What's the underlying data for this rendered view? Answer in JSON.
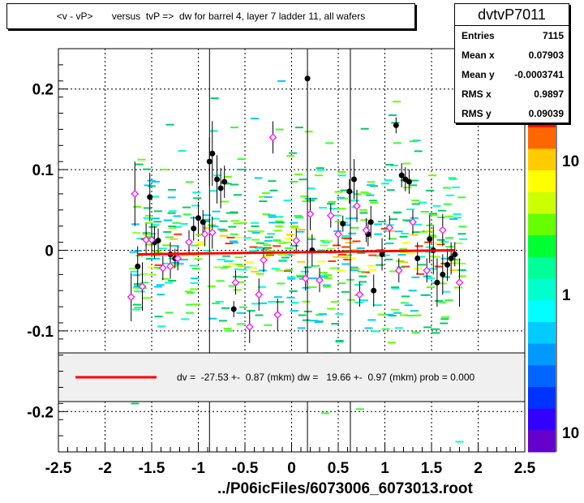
{
  "title": "<v - vP>       versus  tvP =>  dw for barrel 4, layer 7 ladder 11, all wafers",
  "stats": {
    "name": "dvtvP7011",
    "rows": [
      {
        "label": "Entries",
        "value": "7115"
      },
      {
        "label": "Mean x",
        "value": "0.07903"
      },
      {
        "label": "Mean y",
        "value": "-0.0003741"
      },
      {
        "label": "RMS x",
        "value": "0.9897"
      },
      {
        "label": "RMS y",
        "value": "0.09039"
      }
    ]
  },
  "footer": "../P06icFiles/6073006_6073013.root",
  "fit_legend": "dv =  -27.53 +-  0.87 (mkm) dw =   19.66 +-  0.97 (mkm) prob = 0.000",
  "colors": {
    "fit": "#ff0000",
    "profile": "#000000",
    "profile2": "#ff00ff"
  },
  "chart_data": {
    "type": "scatter",
    "xlim": [
      -2.5,
      2.5
    ],
    "ylim": [
      -0.25,
      0.25
    ],
    "xticks": [
      "-2.5",
      "-2",
      "-1.5",
      "-1",
      "-0.5",
      "0",
      "0.5",
      "1",
      "1.5",
      "2",
      "2.5"
    ],
    "yticks": [
      "0.2",
      "0.1",
      "0",
      "-0.1",
      "-0.2"
    ],
    "ytick_values": [
      0.2,
      0.1,
      0,
      -0.1,
      -0.2
    ],
    "grid": true,
    "colorbar_labels": [
      "10",
      "1",
      "10"
    ],
    "fit_line": {
      "x": [
        -1.65,
        1.75
      ],
      "y": [
        -0.005,
        0.0
      ]
    },
    "vertical_lines_x": [
      -0.88,
      0.17,
      0.63
    ],
    "series": [
      {
        "marker": "filled-circle",
        "points": [
          {
            "x": -1.65,
            "y": -0.02,
            "err": 0.025
          },
          {
            "x": -1.52,
            "y": 0.066,
            "err": 0.03
          },
          {
            "x": -1.47,
            "y": 0.01,
            "err": 0.02
          },
          {
            "x": -1.43,
            "y": 0.012,
            "err": 0.015
          },
          {
            "x": -1.3,
            "y": -0.005,
            "err": 0.015
          },
          {
            "x": -1.25,
            "y": -0.01,
            "err": 0.012
          },
          {
            "x": -1.05,
            "y": 0.027,
            "err": 0.015
          },
          {
            "x": -1.0,
            "y": 0.04,
            "err": 0.02
          },
          {
            "x": -0.95,
            "y": 0.035,
            "err": 0.015
          },
          {
            "x": -0.88,
            "y": 0.11,
            "err": 0.03
          },
          {
            "x": -0.85,
            "y": 0.12,
            "err": 0.04
          },
          {
            "x": -0.8,
            "y": 0.088,
            "err": 0.03
          },
          {
            "x": -0.76,
            "y": 0.077,
            "err": 0.025
          },
          {
            "x": -0.72,
            "y": 0.085,
            "err": 0.02
          },
          {
            "x": -0.62,
            "y": -0.073,
            "err": 0.01
          },
          {
            "x": 0.17,
            "y": 0.213,
            "err": 0.01
          },
          {
            "x": 0.22,
            "y": 0.0,
            "err": 0.02
          },
          {
            "x": 0.55,
            "y": 0.033,
            "err": 0.01
          },
          {
            "x": 0.62,
            "y": 0.073,
            "err": 0.015
          },
          {
            "x": 0.67,
            "y": 0.088,
            "err": 0.025
          },
          {
            "x": 0.82,
            "y": 0.02,
            "err": 0.015
          },
          {
            "x": 0.85,
            "y": 0.035,
            "err": 0.02
          },
          {
            "x": 0.88,
            "y": -0.05,
            "err": 0.02
          },
          {
            "x": 0.97,
            "y": -0.005,
            "err": 0.02
          },
          {
            "x": 1.12,
            "y": 0.155,
            "err": 0.01
          },
          {
            "x": 1.18,
            "y": 0.093,
            "err": 0.015
          },
          {
            "x": 1.22,
            "y": 0.088,
            "err": 0.015
          },
          {
            "x": 1.26,
            "y": 0.085,
            "err": 0.015
          },
          {
            "x": 1.35,
            "y": -0.01,
            "err": 0.02
          },
          {
            "x": 1.48,
            "y": 0.014,
            "err": 0.03
          },
          {
            "x": 1.52,
            "y": 0.0,
            "err": 0.03
          },
          {
            "x": 1.56,
            "y": -0.04,
            "err": 0.03
          },
          {
            "x": 1.62,
            "y": -0.03,
            "err": 0.025
          },
          {
            "x": 1.67,
            "y": -0.018,
            "err": 0.02
          },
          {
            "x": 1.71,
            "y": -0.01,
            "err": 0.02
          },
          {
            "x": 1.75,
            "y": -0.005,
            "err": 0.015
          }
        ]
      },
      {
        "marker": "open-diamond",
        "points": [
          {
            "x": -1.72,
            "y": -0.058,
            "err": 0.03
          },
          {
            "x": -1.68,
            "y": 0.07,
            "err": 0.04
          },
          {
            "x": -1.6,
            "y": -0.045,
            "err": 0.03
          },
          {
            "x": -1.56,
            "y": 0.013,
            "err": 0.02
          },
          {
            "x": -1.5,
            "y": 0.013,
            "err": 0.02
          },
          {
            "x": -1.38,
            "y": -0.022,
            "err": 0.015
          },
          {
            "x": -1.3,
            "y": -0.02,
            "err": 0.015
          },
          {
            "x": -1.22,
            "y": -0.01,
            "err": 0.015
          },
          {
            "x": -1.1,
            "y": 0.01,
            "err": 0.015
          },
          {
            "x": -0.93,
            "y": 0.02,
            "err": 0.015
          },
          {
            "x": -0.85,
            "y": 0.022,
            "err": 0.02
          },
          {
            "x": -0.6,
            "y": -0.04,
            "err": 0.015
          },
          {
            "x": -0.45,
            "y": -0.095,
            "err": 0.02
          },
          {
            "x": -0.35,
            "y": -0.055,
            "err": 0.02
          },
          {
            "x": -0.3,
            "y": -0.012,
            "err": 0.015
          },
          {
            "x": -0.2,
            "y": 0.14,
            "err": 0.02
          },
          {
            "x": -0.15,
            "y": -0.08,
            "err": 0.02
          },
          {
            "x": 0.05,
            "y": 0.012,
            "err": 0.015
          },
          {
            "x": 0.15,
            "y": -0.035,
            "err": 0.015
          },
          {
            "x": 0.2,
            "y": 0.045,
            "err": 0.02
          },
          {
            "x": 0.3,
            "y": -0.037,
            "err": 0.015
          },
          {
            "x": 0.42,
            "y": 0.043,
            "err": 0.015
          },
          {
            "x": 0.5,
            "y": 0.02,
            "err": 0.015
          },
          {
            "x": 0.7,
            "y": 0.055,
            "err": 0.02
          },
          {
            "x": 0.73,
            "y": -0.055,
            "err": 0.015
          },
          {
            "x": 0.8,
            "y": 0.025,
            "err": 0.015
          },
          {
            "x": 1.05,
            "y": 0.028,
            "err": 0.015
          },
          {
            "x": 1.15,
            "y": -0.025,
            "err": 0.015
          },
          {
            "x": 1.3,
            "y": 0.035,
            "err": 0.015
          },
          {
            "x": 1.45,
            "y": -0.025,
            "err": 0.015
          },
          {
            "x": 1.62,
            "y": 0.025,
            "err": 0.02
          },
          {
            "x": 1.8,
            "y": -0.04,
            "err": 0.03
          }
        ]
      }
    ]
  }
}
